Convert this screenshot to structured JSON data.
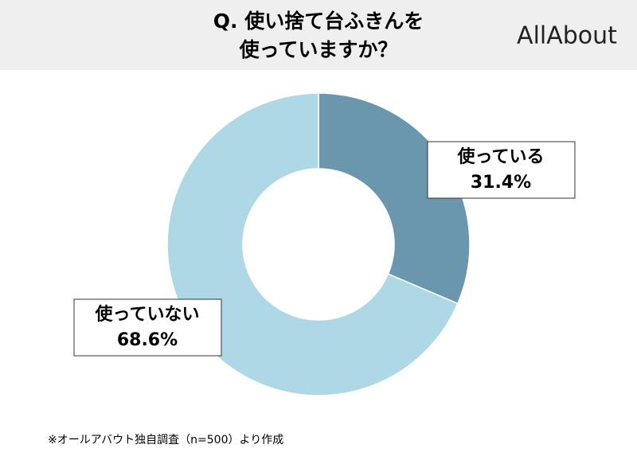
{
  "chart_data": {
    "type": "donut",
    "title_lines": [
      "Q. 使い捨て台ふきんを",
      "使っていますか？"
    ],
    "logo": "AllAbout",
    "categories": [
      "使っている",
      "使っていない"
    ],
    "values": [
      31.4,
      68.6
    ],
    "value_labels": [
      "31.4%",
      "68.6%"
    ],
    "colors": [
      "#6a97ae",
      "#afd8e6"
    ],
    "note": "※オールアバウト独自調査（n=500）より作成"
  }
}
